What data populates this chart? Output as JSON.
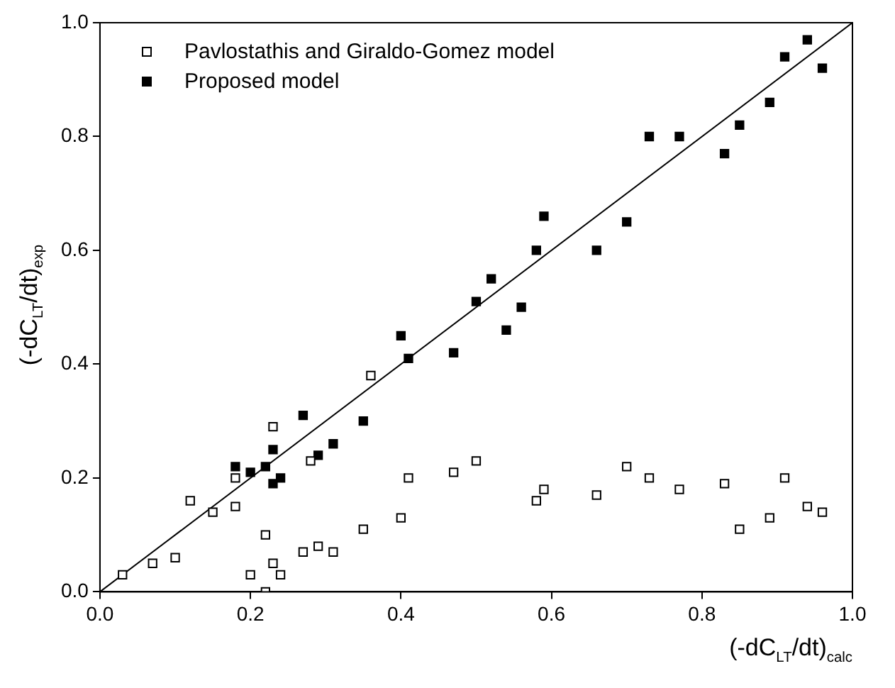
{
  "chart_data": {
    "type": "scatter",
    "xlabel": "(-dC$_{LT}$/dt)$_{calc}$",
    "ylabel": "(-dC$_{LT}$/dt)$_{exp}$",
    "xlim": [
      0,
      1
    ],
    "ylim": [
      0,
      1
    ],
    "xticks": [
      {
        "value": 0,
        "label": "0.0"
      },
      {
        "value": 0.2,
        "label": "0.2"
      },
      {
        "value": 0.4,
        "label": "0.4"
      },
      {
        "value": 0.6,
        "label": "0.6"
      },
      {
        "value": 0.8,
        "label": "0.8"
      },
      {
        "value": 1,
        "label": "1.0"
      }
    ],
    "yticks": [
      {
        "value": 0,
        "label": "0.0"
      },
      {
        "value": 0.2,
        "label": "0.2"
      },
      {
        "value": 0.4,
        "label": "0.4"
      },
      {
        "value": 0.6,
        "label": "0.6"
      },
      {
        "value": 0.8,
        "label": "0.8"
      },
      {
        "value": 1,
        "label": "1.0"
      }
    ],
    "grid": false,
    "legend": "top left",
    "series": [
      {
        "name": "Pavlostathis and Giraldo-Gomez model",
        "color": "#000000",
        "marker": "square",
        "x": [
          0.03,
          0.07,
          0.1,
          0.12,
          0.15,
          0.18,
          0.18,
          0.2,
          0.22,
          0.22,
          0.23,
          0.24,
          0.23,
          0.28,
          0.27,
          0.29,
          0.31,
          0.35,
          0.36,
          0.4,
          0.41,
          0.47,
          0.5,
          0.58,
          0.59,
          0.66,
          0.7,
          0.73,
          0.77,
          0.83,
          0.85,
          0.89,
          0.91,
          0.94,
          0.96
        ],
        "values": [
          0.03,
          0.05,
          0.06,
          0.16,
          0.14,
          0.15,
          0.2,
          0.03,
          0.1,
          0.0,
          0.05,
          0.03,
          0.29,
          0.23,
          0.07,
          0.08,
          0.07,
          0.11,
          0.38,
          0.13,
          0.2,
          0.21,
          0.23,
          0.16,
          0.18,
          0.17,
          0.22,
          0.2,
          0.18,
          0.19,
          0.11,
          0.13,
          0.2,
          0.15,
          0.14
        ]
      },
      {
        "name": "Proposed model",
        "color": "#000000",
        "marker": "square",
        "x": [
          0.18,
          0.2,
          0.22,
          0.23,
          0.23,
          0.24,
          0.27,
          0.29,
          0.31,
          0.35,
          0.4,
          0.41,
          0.47,
          0.5,
          0.52,
          0.54,
          0.56,
          0.58,
          0.59,
          0.66,
          0.7,
          0.73,
          0.77,
          0.83,
          0.85,
          0.89,
          0.91,
          0.94,
          0.96
        ],
        "values": [
          0.22,
          0.21,
          0.22,
          0.25,
          0.19,
          0.2,
          0.31,
          0.24,
          0.26,
          0.3,
          0.45,
          0.41,
          0.42,
          0.51,
          0.55,
          0.46,
          0.5,
          0.6,
          0.66,
          0.6,
          0.65,
          0.8,
          0.8,
          0.77,
          0.82,
          0.86,
          0.94,
          0.97,
          0.92
        ]
      },
      {
        "type": "line",
        "color": "#000000",
        "marker": "none",
        "x": [
          0,
          1
        ],
        "values": [
          0,
          1
        ]
      }
    ]
  }
}
